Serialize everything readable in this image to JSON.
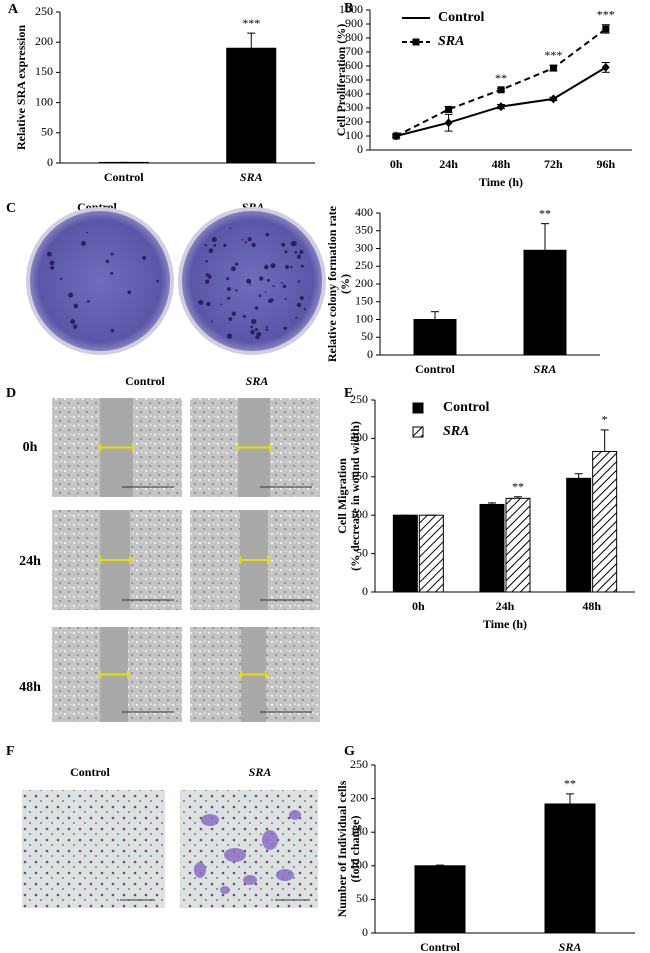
{
  "panel_labels": [
    "A",
    "B",
    "C",
    "D",
    "E",
    "F",
    "G"
  ],
  "colony_labels": [
    "Control",
    "SRA"
  ],
  "wound": {
    "columns": [
      "Control",
      "SRA"
    ],
    "rows": [
      "0h",
      "24h",
      "48h"
    ]
  },
  "transwell_labels": [
    "Control",
    "SRA"
  ],
  "chart_data": [
    {
      "type": "bar",
      "ylabel": [
        "Relative SRA expression"
      ],
      "categories": [
        "Control",
        "SRA"
      ],
      "italic_categories": [
        false,
        true
      ],
      "values": [
        1,
        190
      ],
      "errors": [
        0,
        25
      ],
      "color": "#000000",
      "annotations": [
        null,
        "***"
      ],
      "ylim": [
        0,
        250
      ],
      "yticks": [
        0,
        50,
        100,
        150,
        200,
        250
      ]
    },
    {
      "type": "line",
      "ylabel": [
        "Cell Proliferation (%)"
      ],
      "xlabel": "Time (h)",
      "categories": [
        "0h",
        "24h",
        "48h",
        "72h",
        "96h"
      ],
      "italic_categories": [
        false,
        false,
        false,
        false,
        false
      ],
      "series": [
        {
          "name": "Control",
          "color": "#000000",
          "dash": false,
          "marker": "diamond",
          "italic": false,
          "values": [
            100,
            195,
            310,
            365,
            590
          ],
          "errors": [
            10,
            60,
            15,
            12,
            35
          ]
        },
        {
          "name": "SRA",
          "color": "#000000",
          "dash": true,
          "marker": "square",
          "italic": true,
          "values": [
            100,
            290,
            430,
            585,
            865
          ],
          "errors": [
            10,
            20,
            10,
            20,
            30
          ]
        }
      ],
      "annotations": [
        null,
        null,
        "**",
        "***",
        "***"
      ],
      "legend": "upper left",
      "ylim": [
        0,
        1000
      ],
      "yticks": [
        0,
        100,
        200,
        300,
        400,
        500,
        600,
        700,
        800,
        900,
        1000
      ]
    },
    {
      "type": "bar",
      "ylabel": [
        "Relative colony formation rate",
        "(%)"
      ],
      "categories": [
        "Control",
        "SRA"
      ],
      "italic_categories": [
        false,
        true
      ],
      "values": [
        100,
        295
      ],
      "errors": [
        22,
        75
      ],
      "color": "#000000",
      "annotations": [
        null,
        "**"
      ],
      "ylim": [
        0,
        400
      ],
      "yticks": [
        0,
        50,
        100,
        150,
        200,
        250,
        300,
        350,
        400
      ]
    },
    {
      "type": "bar",
      "ylabel": [
        "Cell Migration",
        "(% decrease in wound width)"
      ],
      "xlabel": "Time (h)",
      "categories": [
        "0h",
        "24h",
        "48h"
      ],
      "italic_categories": [
        false,
        false,
        false
      ],
      "series": [
        {
          "name": "Control",
          "color": "#000000",
          "pattern": "solid",
          "italic": false,
          "values": [
            100,
            114,
            148
          ],
          "errors": [
            0,
            2,
            6
          ]
        },
        {
          "name": "SRA",
          "color": "#000000",
          "pattern": "hatch",
          "italic": true,
          "values": [
            100,
            122,
            183
          ],
          "errors": [
            0,
            2,
            28
          ]
        }
      ],
      "annotations": [
        null,
        "**",
        "*"
      ],
      "legend": "upper left",
      "ylim": [
        0,
        250
      ],
      "yticks": [
        0,
        50,
        100,
        150,
        200,
        250
      ]
    },
    {
      "type": "bar",
      "ylabel": [
        "Number of Individual cells",
        "(fold change)"
      ],
      "categories": [
        "Control",
        "SRA"
      ],
      "italic_categories": [
        false,
        true
      ],
      "values": [
        100,
        192
      ],
      "errors": [
        1,
        15
      ],
      "color": "#000000",
      "annotations": [
        null,
        "**"
      ],
      "ylim": [
        0,
        250
      ],
      "yticks": [
        0,
        50,
        100,
        150,
        200,
        250
      ]
    }
  ]
}
